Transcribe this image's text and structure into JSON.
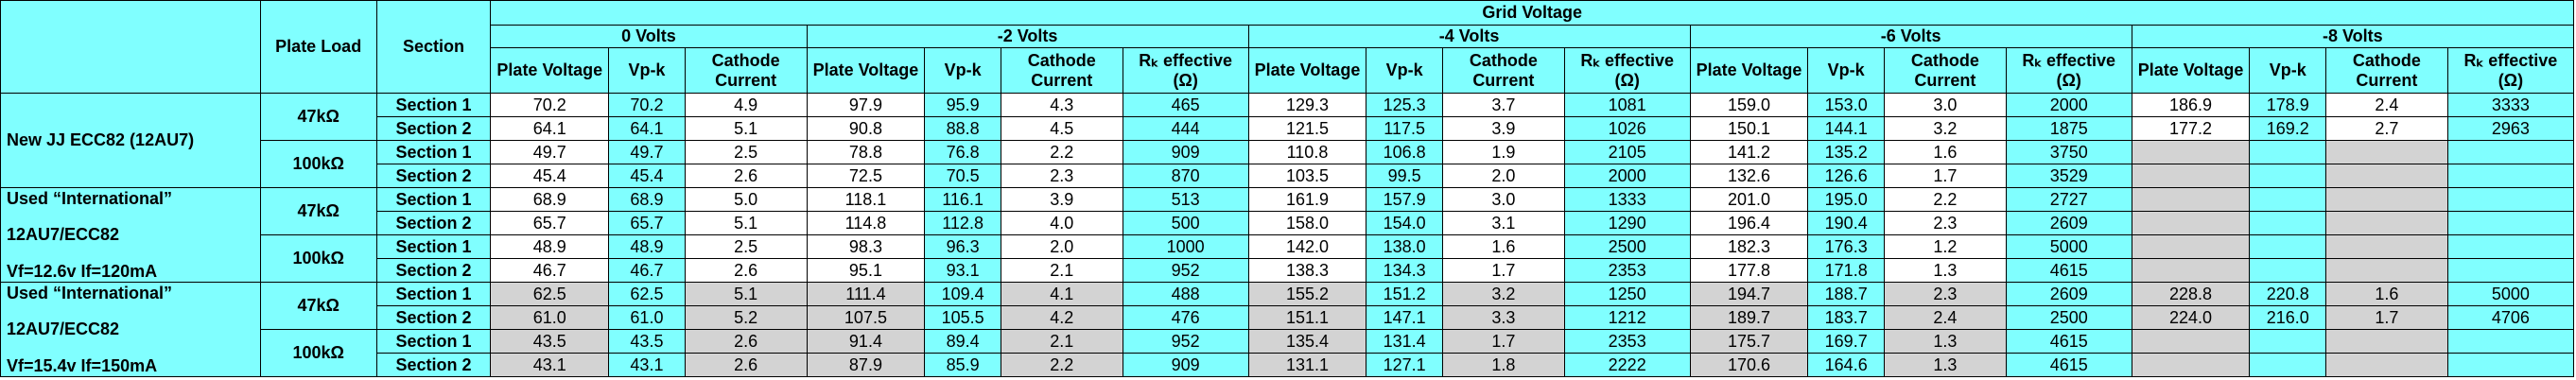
{
  "header": {
    "group_title": "Grid Voltage",
    "plate_load": "Plate Load",
    "section": "Section",
    "voltages": [
      {
        "label": "0 Volts",
        "columns": [
          "Plate Voltage",
          "Vp-k",
          "Cathode Current"
        ]
      },
      {
        "label": "-2 Volts",
        "columns": [
          "Plate Voltage",
          "Vp-k",
          "Cathode Current",
          "Rₖ effective (Ω)"
        ]
      },
      {
        "label": "-4 Volts",
        "columns": [
          "Plate Voltage",
          "Vp-k",
          "Cathode Current",
          "Rₖ effective (Ω)"
        ]
      },
      {
        "label": "-6 Volts",
        "columns": [
          "Plate Voltage",
          "Vp-k",
          "Cathode Current",
          "Rₖ effective (Ω)"
        ]
      },
      {
        "label": "-8 Volts",
        "columns": [
          "Plate Voltage",
          "Vp-k",
          "Cathode Current",
          "Rₖ effective (Ω)"
        ]
      }
    ]
  },
  "style": {
    "header_color": "#80ffff",
    "highlight_color": "#80ffff",
    "blank_color": "#d3d3d3",
    "highlight_columns": [
      1,
      3
    ]
  },
  "groups": [
    {
      "tube": [
        "New JJ ECC82 (12AU7)"
      ],
      "background": "#ffffff",
      "loads": [
        {
          "load": "47kΩ",
          "sections": [
            {
              "name": "Section 1",
              "values": [
                "70.2",
                "70.2",
                "4.9",
                "97.9",
                "95.9",
                "4.3",
                "465",
                "129.3",
                "125.3",
                "3.7",
                "1081",
                "159.0",
                "153.0",
                "3.0",
                "2000",
                "186.9",
                "178.9",
                "2.4",
                "3333"
              ]
            },
            {
              "name": "Section 2",
              "values": [
                "64.1",
                "64.1",
                "5.1",
                "90.8",
                "88.8",
                "4.5",
                "444",
                "121.5",
                "117.5",
                "3.9",
                "1026",
                "150.1",
                "144.1",
                "3.2",
                "1875",
                "177.2",
                "169.2",
                "2.7",
                "2963"
              ]
            }
          ]
        },
        {
          "load": "100kΩ",
          "sections": [
            {
              "name": "Section 1",
              "values": [
                "49.7",
                "49.7",
                "2.5",
                "78.8",
                "76.8",
                "2.2",
                "909",
                "110.8",
                "106.8",
                "1.9",
                "2105",
                "141.2",
                "135.2",
                "1.6",
                "3750",
                null,
                null,
                null,
                null
              ]
            },
            {
              "name": "Section 2",
              "values": [
                "45.4",
                "45.4",
                "2.6",
                "72.5",
                "70.5",
                "2.3",
                "870",
                "103.5",
                "99.5",
                "2.0",
                "2000",
                "132.6",
                "126.6",
                "1.7",
                "3529",
                null,
                null,
                null,
                null
              ]
            }
          ]
        }
      ]
    },
    {
      "tube": [
        "Used “International”",
        "12AU7/ECC82",
        "Vf=12.6v If=120mA"
      ],
      "background": "#ffffff",
      "loads": [
        {
          "load": "47kΩ",
          "sections": [
            {
              "name": "Section 1",
              "values": [
                "68.9",
                "68.9",
                "5.0",
                "118.1",
                "116.1",
                "3.9",
                "513",
                "161.9",
                "157.9",
                "3.0",
                "1333",
                "201.0",
                "195.0",
                "2.2",
                "2727",
                null,
                null,
                null,
                null
              ]
            },
            {
              "name": "Section 2",
              "values": [
                "65.7",
                "65.7",
                "5.1",
                "114.8",
                "112.8",
                "4.0",
                "500",
                "158.0",
                "154.0",
                "3.1",
                "1290",
                "196.4",
                "190.4",
                "2.3",
                "2609",
                null,
                null,
                null,
                null
              ]
            }
          ]
        },
        {
          "load": "100kΩ",
          "sections": [
            {
              "name": "Section 1",
              "values": [
                "48.9",
                "48.9",
                "2.5",
                "98.3",
                "96.3",
                "2.0",
                "1000",
                "142.0",
                "138.0",
                "1.6",
                "2500",
                "182.3",
                "176.3",
                "1.2",
                "5000",
                null,
                null,
                null,
                null
              ]
            },
            {
              "name": "Section 2",
              "values": [
                "46.7",
                "46.7",
                "2.6",
                "95.1",
                "93.1",
                "2.1",
                "952",
                "138.3",
                "134.3",
                "1.7",
                "2353",
                "177.8",
                "171.8",
                "1.3",
                "4615",
                null,
                null,
                null,
                null
              ]
            }
          ]
        }
      ]
    },
    {
      "tube": [
        "Used “International”",
        "12AU7/ECC82",
        "Vf=15.4v If=150mA"
      ],
      "background": "#d3d3d3",
      "loads": [
        {
          "load": "47kΩ",
          "sections": [
            {
              "name": "Section 1",
              "values": [
                "62.5",
                "62.5",
                "5.1",
                "111.4",
                "109.4",
                "4.1",
                "488",
                "155.2",
                "151.2",
                "3.2",
                "1250",
                "194.7",
                "188.7",
                "2.3",
                "2609",
                "228.8",
                "220.8",
                "1.6",
                "5000"
              ]
            },
            {
              "name": "Section 2",
              "values": [
                "61.0",
                "61.0",
                "5.2",
                "107.5",
                "105.5",
                "4.2",
                "476",
                "151.1",
                "147.1",
                "3.3",
                "1212",
                "189.7",
                "183.7",
                "2.4",
                "2500",
                "224.0",
                "216.0",
                "1.7",
                "4706"
              ]
            }
          ]
        },
        {
          "load": "100kΩ",
          "sections": [
            {
              "name": "Section 1",
              "values": [
                "43.5",
                "43.5",
                "2.6",
                "91.4",
                "89.4",
                "2.1",
                "952",
                "135.4",
                "131.4",
                "1.7",
                "2353",
                "175.7",
                "169.7",
                "1.3",
                "4615",
                null,
                null,
                null,
                null
              ]
            },
            {
              "name": "Section 2",
              "values": [
                "43.1",
                "43.1",
                "2.6",
                "87.9",
                "85.9",
                "2.2",
                "909",
                "131.1",
                "127.1",
                "1.8",
                "2222",
                "170.6",
                "164.6",
                "1.3",
                "4615",
                null,
                null,
                null,
                null
              ]
            }
          ]
        }
      ]
    }
  ]
}
